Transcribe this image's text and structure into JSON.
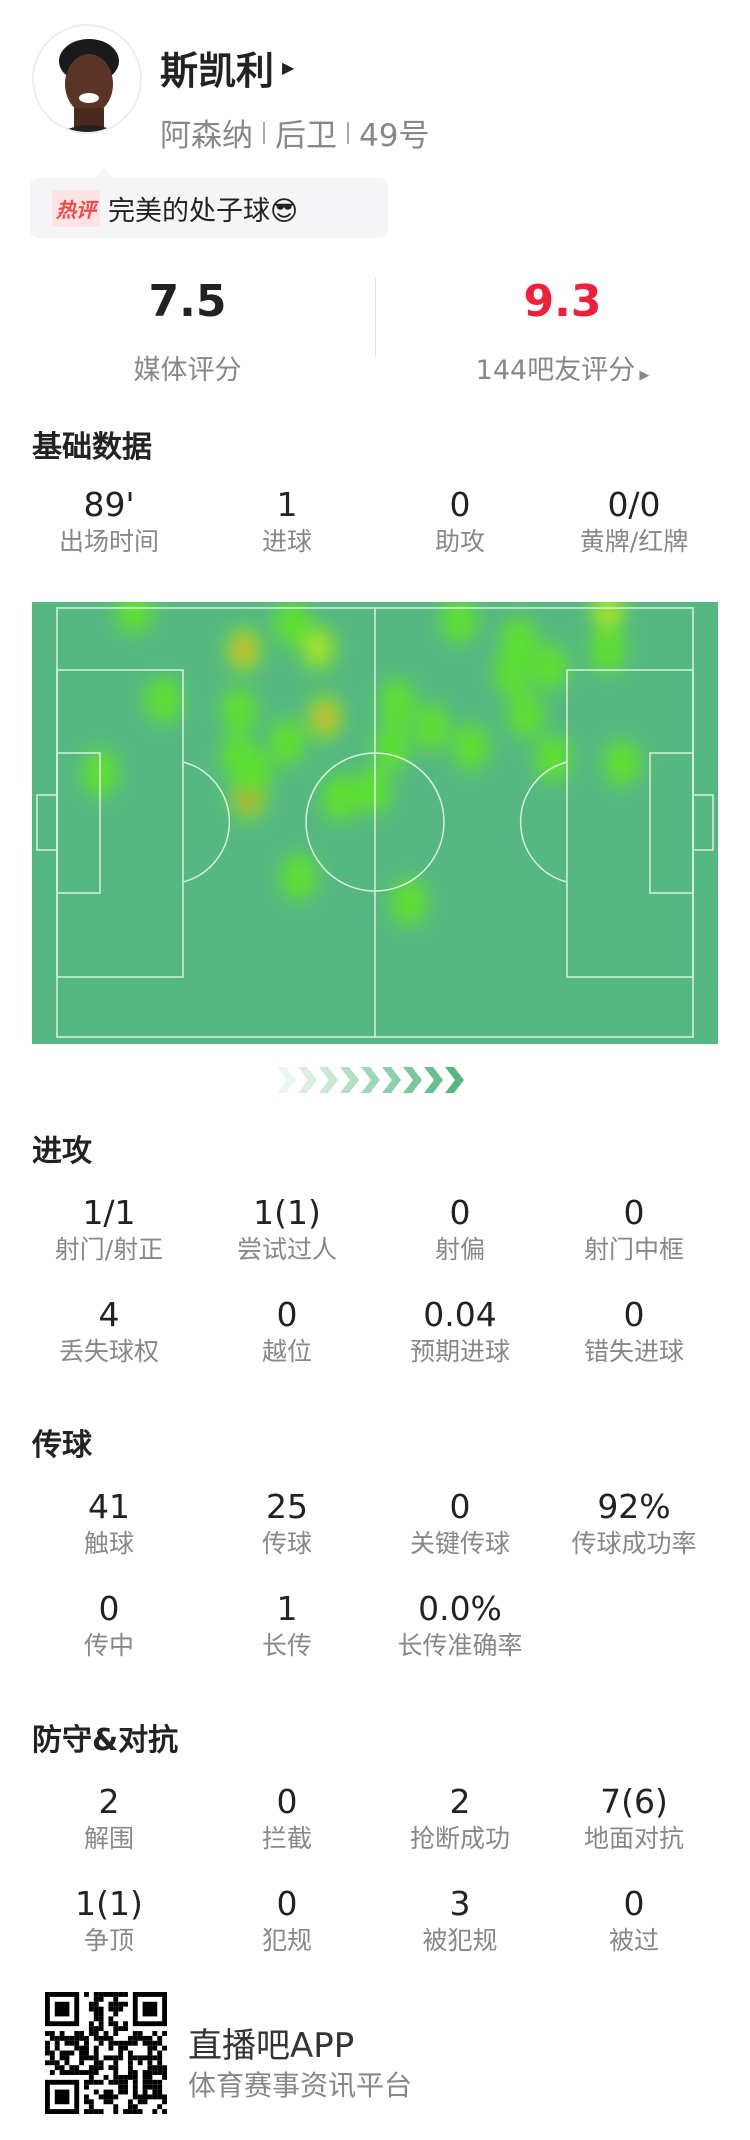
{
  "player": {
    "name": "斯凯利",
    "team": "阿森纳",
    "position": "后卫",
    "number": "49号"
  },
  "hot_comment": {
    "tag": "热评",
    "text": "完美的处子球😎"
  },
  "ratings": {
    "media": {
      "value": "7.5",
      "label": "媒体评分",
      "color": "#222222"
    },
    "fans": {
      "value": "9.3",
      "label": "144吧友评分",
      "color": "#f0203a"
    }
  },
  "sections": [
    {
      "title": "基础数据",
      "rows": [
        [
          {
            "v": "89'",
            "l": "出场时间"
          },
          {
            "v": "1",
            "l": "进球"
          },
          {
            "v": "0",
            "l": "助攻"
          },
          {
            "v": "0/0",
            "l": "黄牌/红牌"
          }
        ]
      ]
    },
    {
      "title": "进攻",
      "rows": [
        [
          {
            "v": "1/1",
            "l": "射门/射正"
          },
          {
            "v": "1(1)",
            "l": "尝试过人"
          },
          {
            "v": "0",
            "l": "射偏"
          },
          {
            "v": "0",
            "l": "射门中框"
          }
        ],
        [
          {
            "v": "4",
            "l": "丢失球权"
          },
          {
            "v": "0",
            "l": "越位"
          },
          {
            "v": "0.04",
            "l": "预期进球"
          },
          {
            "v": "0",
            "l": "错失进球"
          }
        ]
      ]
    },
    {
      "title": "传球",
      "rows": [
        [
          {
            "v": "41",
            "l": "触球"
          },
          {
            "v": "25",
            "l": "传球"
          },
          {
            "v": "0",
            "l": "关键传球"
          },
          {
            "v": "92%",
            "l": "传球成功率"
          }
        ],
        [
          {
            "v": "0",
            "l": "传中"
          },
          {
            "v": "1",
            "l": "长传"
          },
          {
            "v": "0.0%",
            "l": "长传准确率"
          }
        ]
      ]
    },
    {
      "title": "防守&对抗",
      "rows": [
        [
          {
            "v": "2",
            "l": "解围"
          },
          {
            "v": "0",
            "l": "拦截"
          },
          {
            "v": "2",
            "l": "抢断成功"
          },
          {
            "v": "7(6)",
            "l": "地面对抗"
          }
        ],
        [
          {
            "v": "1(1)",
            "l": "争顶"
          },
          {
            "v": "0",
            "l": "犯规"
          },
          {
            "v": "3",
            "l": "被犯规"
          },
          {
            "v": "0",
            "l": "被过"
          }
        ]
      ]
    }
  ],
  "colors": {
    "pitch": "#56b881",
    "accent_red": "#f0203a"
  },
  "footer": {
    "app": "直播吧APP",
    "slogan": "体育赛事资讯平台"
  }
}
